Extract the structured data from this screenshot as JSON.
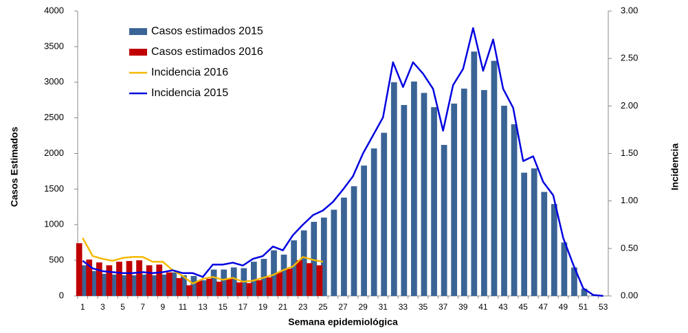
{
  "chart_data": {
    "type": "bar",
    "x_label": "Semana epidemiológica",
    "y_label": "Casos Estimados",
    "y2_label": "Incidencia",
    "categories": [
      "1",
      null,
      "3",
      null,
      "5",
      null,
      "7",
      null,
      "9",
      null,
      "11",
      null,
      "13",
      null,
      "15",
      null,
      "17",
      null,
      "19",
      null,
      "21",
      null,
      "23",
      null,
      "25",
      null,
      "27",
      null,
      "29",
      null,
      "31",
      null,
      "33",
      null,
      "35",
      null,
      "37",
      null,
      "39",
      null,
      "41",
      null,
      "43",
      null,
      "45",
      null,
      "47",
      null,
      "49",
      null,
      "51",
      null,
      "53"
    ],
    "ylim": [
      0,
      4000
    ],
    "yticks": [
      0,
      500,
      1000,
      1500,
      2000,
      2500,
      3000,
      3500,
      4000
    ],
    "y2lim": [
      0,
      3
    ],
    "y2ticks": [
      {
        "value": 0,
        "label": "0.00"
      },
      {
        "value": 0.5,
        "label": "0.50"
      },
      {
        "value": 1,
        "label": "1.00"
      },
      {
        "value": 1.5,
        "label": "1.50"
      },
      {
        "value": 2,
        "label": "2.00"
      },
      {
        "value": 2.5,
        "label": "2.50"
      },
      {
        "value": 3,
        "label": "3.00"
      }
    ],
    "legend_position": "upper-left",
    "series": [
      {
        "name": "Casos estimados 2015",
        "type": "bar",
        "color": "#3a6496",
        "values": [
          430,
          350,
          310,
          300,
          290,
          290,
          300,
          290,
          300,
          330,
          290,
          280,
          220,
          370,
          370,
          400,
          390,
          480,
          520,
          640,
          580,
          780,
          920,
          1040,
          1100,
          1210,
          1380,
          1540,
          1830,
          2070,
          2290,
          3000,
          2680,
          3010,
          2850,
          2650,
          2120,
          2700,
          2910,
          3430,
          2890,
          3300,
          2670,
          2410,
          1730,
          1790,
          1460,
          1290,
          750,
          400,
          100,
          10,
          0
        ]
      },
      {
        "name": "Casos estimados 2016",
        "type": "bar",
        "color": "#c00000",
        "values": [
          740,
          510,
          470,
          430,
          480,
          490,
          500,
          430,
          440,
          330,
          250,
          150,
          210,
          240,
          200,
          240,
          190,
          180,
          220,
          260,
          330,
          380,
          500,
          460,
          430,
          null,
          null,
          null,
          null,
          null,
          null,
          null,
          null,
          null,
          null,
          null,
          null,
          null,
          null,
          null,
          null,
          null,
          null,
          null,
          null,
          null,
          null,
          null,
          null,
          null,
          null,
          null,
          null
        ]
      },
      {
        "name": "Incidencia 2016",
        "type": "line",
        "axis": "y2",
        "color": "#f5b800",
        "values": [
          0.61,
          0.42,
          0.39,
          0.37,
          0.4,
          0.41,
          0.41,
          0.36,
          0.36,
          0.27,
          0.21,
          0.13,
          0.18,
          0.2,
          0.17,
          0.19,
          0.15,
          0.16,
          0.19,
          0.22,
          0.27,
          0.31,
          0.41,
          0.38,
          0.36,
          null,
          null,
          null,
          null,
          null,
          null,
          null,
          null,
          null,
          null,
          null,
          null,
          null,
          null,
          null,
          null,
          null,
          null,
          null,
          null,
          null,
          null,
          null,
          null,
          null,
          null,
          null,
          null
        ]
      },
      {
        "name": "Incidencia 2015",
        "type": "line",
        "axis": "y2",
        "color": "#0000e0",
        "values": [
          0.37,
          0.29,
          0.26,
          0.25,
          0.24,
          0.24,
          0.25,
          0.24,
          0.25,
          0.27,
          0.24,
          0.24,
          0.2,
          0.33,
          0.33,
          0.35,
          0.32,
          0.39,
          0.42,
          0.52,
          0.48,
          0.64,
          0.75,
          0.85,
          0.9,
          0.99,
          1.12,
          1.26,
          1.5,
          1.69,
          1.88,
          2.46,
          2.2,
          2.46,
          2.34,
          2.18,
          1.74,
          2.22,
          2.39,
          2.82,
          2.37,
          2.7,
          2.18,
          1.98,
          1.42,
          1.47,
          1.2,
          1.06,
          0.61,
          0.33,
          0.08,
          0.01,
          0
        ]
      }
    ]
  }
}
